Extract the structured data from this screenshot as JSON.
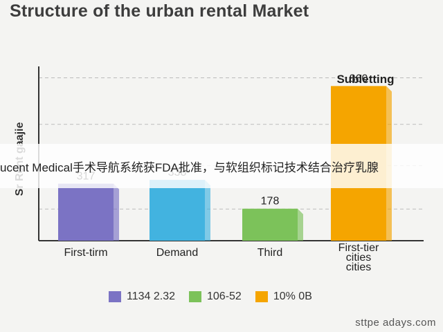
{
  "chart_data": {
    "type": "bar",
    "title": "Structure of the urban rental Market",
    "ylabel": "Sr Rent gaajie",
    "categories": [
      "First-tirm",
      "Demand",
      "Third",
      "First-tier cities cities"
    ],
    "values": [
      317,
      338,
      178,
      860
    ],
    "value_labels": [
      "317",
      "338",
      "178",
      "860"
    ],
    "bar_colors": [
      "#7b73c4",
      "#42b3e0",
      "#7cc25a",
      "#f5a500"
    ],
    "annotation": "Subletting",
    "ylim": [
      0,
      1000
    ],
    "grid": true,
    "legend": [
      {
        "label": "1134 2.32",
        "color": "#7b73c4"
      },
      {
        "label": "106-52",
        "color": "#7cc25a"
      },
      {
        "label": "10% 0B",
        "color": "#f5a500"
      }
    ],
    "legend_position": "bottom"
  },
  "overlay_text": "ucent Medical手术导航系统获FDA批准，与软组织标记技术结合治疗乳腺",
  "source_text": "sttpe adays.com"
}
